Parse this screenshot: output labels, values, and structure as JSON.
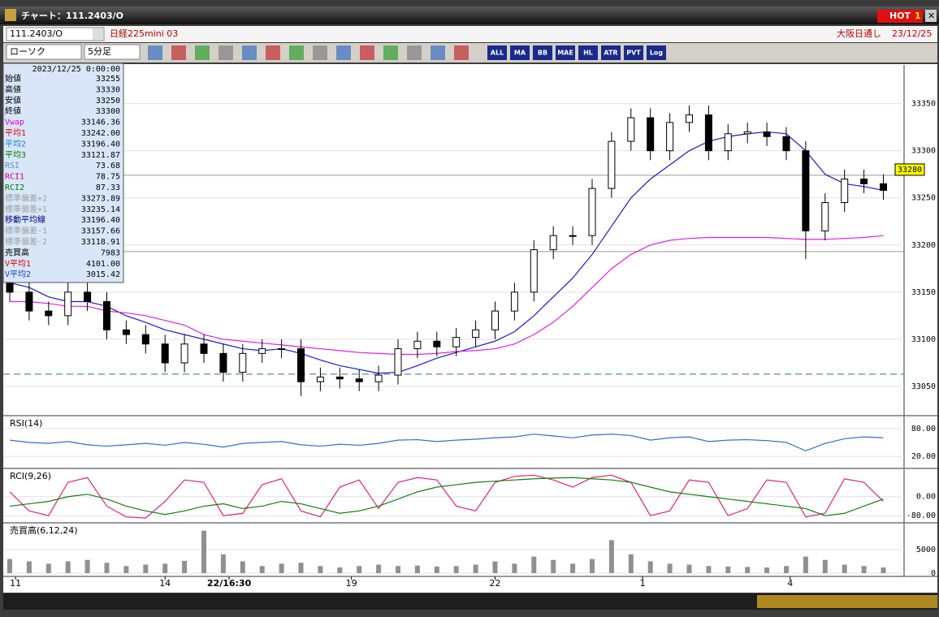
{
  "window": {
    "title": "チャート：111.2403/O",
    "hot": "HOT",
    "hot_num": "1"
  },
  "header": {
    "code": "111.2403/O",
    "name": "日経225mini 03",
    "market": "大阪日通し",
    "date": "23/12/25"
  },
  "toolbar": {
    "chart_type": "ローソク",
    "interval": "5分足",
    "buttons": [
      "ALL",
      "MA",
      "BB",
      "MAE",
      "HL",
      "ATR",
      "PVT",
      "Log"
    ]
  },
  "info": {
    "datetime": "2023/12/25 0:00:00",
    "rows": [
      {
        "label": "始値",
        "value": "33255",
        "color": "#000000"
      },
      {
        "label": "高値",
        "value": "33330",
        "color": "#000000"
      },
      {
        "label": "安値",
        "value": "33250",
        "color": "#000000"
      },
      {
        "label": "終値",
        "value": "33300",
        "color": "#000000"
      },
      {
        "label": "Vwap",
        "value": "33146.36",
        "color": "#e000e0"
      },
      {
        "label": "平均1",
        "value": "33242.00",
        "color": "#e00000"
      },
      {
        "label": "平均2",
        "value": "33196.40",
        "color": "#1080c0"
      },
      {
        "label": "平均3",
        "value": "33121.87",
        "color": "#008000"
      },
      {
        "label": "RSI",
        "value": "73.68",
        "color": "#6090d0"
      },
      {
        "label": "RCI1",
        "value": "78.75",
        "color": "#d00080"
      },
      {
        "label": "RCI2",
        "value": "87.33",
        "color": "#008000"
      },
      {
        "label": "標準偏差+2",
        "value": "33273.89",
        "color": "#a0a0a0"
      },
      {
        "label": "標準偏差+1",
        "value": "33235.14",
        "color": "#a0a0a0"
      },
      {
        "label": "移動平均線",
        "value": "33196.40",
        "color": "#000080"
      },
      {
        "label": "標準偏差-1",
        "value": "33157.66",
        "color": "#a0a0a0"
      },
      {
        "label": "標準偏差-2",
        "value": "33118.91",
        "color": "#a0a0a0"
      },
      {
        "label": "売買高",
        "value": "7983",
        "color": "#000000"
      },
      {
        "label": "V平均1",
        "value": "4101.00",
        "color": "#e00000"
      },
      {
        "label": "V平均2",
        "value": "3015.42",
        "color": "#2040c0"
      }
    ]
  },
  "chart_data": [
    {
      "type": "candlestick",
      "open": [
        33160,
        33150,
        33130,
        33125,
        33150,
        33140,
        33110,
        33105,
        33095,
        33075,
        33095,
        33085,
        33065,
        33085,
        33090,
        33090,
        33055,
        33060,
        33058,
        33055,
        33062,
        33090,
        33098,
        33092,
        33102,
        33110,
        33130,
        33150,
        33195,
        33210,
        33210,
        33260,
        33310,
        33335,
        33300,
        33330,
        33338,
        33300,
        33318,
        33320,
        33315,
        33300,
        33215,
        33245,
        33270,
        33265
      ],
      "high": [
        33170,
        33160,
        33140,
        33160,
        33160,
        33150,
        33120,
        33115,
        33105,
        33105,
        33105,
        33095,
        33095,
        33100,
        33100,
        33100,
        33070,
        33070,
        33068,
        33072,
        33100,
        33108,
        33108,
        33112,
        33120,
        33140,
        33160,
        33205,
        33220,
        33220,
        33270,
        33320,
        33345,
        33345,
        33340,
        33348,
        33348,
        33328,
        33330,
        33330,
        33325,
        33310,
        33255,
        33280,
        33280,
        33275
      ],
      "low": [
        33140,
        33120,
        33115,
        33115,
        33130,
        33100,
        33095,
        33085,
        33065,
        33065,
        33075,
        33055,
        33055,
        33075,
        33080,
        33040,
        33045,
        33048,
        33045,
        33045,
        33052,
        33080,
        33082,
        33082,
        33092,
        33100,
        33120,
        33140,
        33185,
        33200,
        33200,
        33250,
        33300,
        33290,
        33290,
        33320,
        33290,
        33290,
        33308,
        33305,
        33290,
        33185,
        33205,
        33235,
        33255,
        33248
      ],
      "close": [
        33150,
        33130,
        33125,
        33150,
        33140,
        33110,
        33105,
        33095,
        33075,
        33095,
        33085,
        33065,
        33085,
        33090,
        33090,
        33055,
        33060,
        33058,
        33055,
        33062,
        33090,
        33098,
        33092,
        33102,
        33110,
        33130,
        33150,
        33195,
        33210,
        33210,
        33260,
        33310,
        33335,
        33300,
        33330,
        33338,
        33300,
        33318,
        33320,
        33315,
        33300,
        33215,
        33245,
        33270,
        33265,
        33258
      ],
      "overlays": [
        {
          "color": "#1a1ad0",
          "values": [
            33160,
            33155,
            33145,
            33140,
            33140,
            33135,
            33125,
            33118,
            33110,
            33105,
            33100,
            33095,
            33090,
            33088,
            33090,
            33085,
            33078,
            33072,
            33068,
            33064,
            33065,
            33072,
            33080,
            33086,
            33092,
            33098,
            33108,
            33125,
            33145,
            33165,
            33190,
            33220,
            33250,
            33270,
            33285,
            33300,
            33310,
            33315,
            33318,
            33320,
            33318,
            33300,
            33275,
            33265,
            33262,
            33258
          ]
        },
        {
          "color": "#e020e0",
          "values": [
            33140,
            33140,
            33138,
            33135,
            33135,
            33130,
            33128,
            33125,
            33120,
            33115,
            33105,
            33100,
            33098,
            33096,
            33094,
            33092,
            33090,
            33088,
            33086,
            33085,
            33084,
            33084,
            33085,
            33087,
            33088,
            33090,
            33095,
            33105,
            33118,
            33135,
            33155,
            33175,
            33190,
            33200,
            33205,
            33207,
            33208,
            33208,
            33208,
            33208,
            33207,
            33206,
            33206,
            33207,
            33208,
            33210
          ]
        }
      ],
      "ylim": [
        33019,
        33391
      ],
      "yticks": [
        33050,
        33100,
        33150,
        33200,
        33250,
        33300,
        33350
      ],
      "xticks": [
        {
          "value": 0.3,
          "label": "11"
        },
        {
          "value": 8,
          "label": "14"
        },
        {
          "value": 11.3,
          "label": "22/16:30"
        },
        {
          "value": 17.6,
          "label": "19"
        },
        {
          "value": 25,
          "label": "22"
        },
        {
          "value": 32.6,
          "label": "1"
        },
        {
          "value": 40.2,
          "label": "4"
        }
      ],
      "hlines": [
        33274,
        33193
      ],
      "dashed_line": 33063,
      "last_price": {
        "value": 33280,
        "label": "33280"
      }
    },
    {
      "type": "line",
      "title": "RSI(14)",
      "ylim": [
        -6,
        106
      ],
      "yticks": [
        {
          "value": 80,
          "label": "80.00"
        },
        {
          "value": 20,
          "label": "20.00"
        }
      ],
      "series": [
        {
          "color": "#3070d0",
          "values": [
            55,
            50,
            48,
            52,
            45,
            42,
            45,
            48,
            44,
            50,
            46,
            40,
            48,
            50,
            52,
            45,
            42,
            46,
            44,
            48,
            55,
            56,
            52,
            55,
            57,
            60,
            62,
            68,
            64,
            60,
            66,
            68,
            65,
            55,
            60,
            62,
            52,
            55,
            56,
            54,
            50,
            32,
            48,
            58,
            62,
            60
          ]
        }
      ]
    },
    {
      "type": "line",
      "title": "RCI(9,26)",
      "ylim": [
        -110,
        115
      ],
      "yticks": [
        {
          "value": 0,
          "label": "0.00"
        },
        {
          "value": -80,
          "label": "-80.00"
        }
      ],
      "series": [
        {
          "color": "#e0207a",
          "values": [
            20,
            -60,
            -80,
            60,
            80,
            -40,
            -85,
            -90,
            -20,
            70,
            60,
            -80,
            -70,
            50,
            75,
            -60,
            -85,
            40,
            70,
            -50,
            60,
            80,
            70,
            -40,
            -60,
            60,
            85,
            90,
            70,
            40,
            80,
            90,
            60,
            -80,
            -60,
            70,
            60,
            -80,
            -50,
            70,
            60,
            -85,
            -70,
            75,
            60,
            -20
          ]
        },
        {
          "color": "#108010",
          "values": [
            -40,
            -30,
            -20,
            0,
            10,
            -10,
            -40,
            -60,
            -75,
            -60,
            -40,
            -30,
            -50,
            -40,
            -20,
            -30,
            -50,
            -70,
            -60,
            -40,
            -10,
            20,
            40,
            50,
            60,
            65,
            70,
            75,
            78,
            80,
            75,
            70,
            60,
            40,
            20,
            10,
            0,
            -10,
            -20,
            -30,
            -40,
            -50,
            -80,
            -70,
            -40,
            -10
          ]
        }
      ]
    },
    {
      "type": "bar",
      "title": "売買高(6,12,24)",
      "color": "#909090",
      "ylim": [
        -700,
        10500
      ],
      "yticks": [
        5000,
        0
      ],
      "values": [
        3000,
        2500,
        2000,
        2500,
        2800,
        2200,
        1500,
        1800,
        2000,
        2600,
        9000,
        4000,
        2500,
        1500,
        2000,
        2200,
        1500,
        1200,
        1500,
        1800,
        1500,
        1600,
        1400,
        1500,
        1800,
        2500,
        2000,
        3500,
        2800,
        2000,
        3000,
        7000,
        4000,
        2500,
        2000,
        1800,
        1500,
        1400,
        1300,
        1200,
        1500,
        3500,
        2800,
        1800,
        1500,
        1200
      ]
    }
  ]
}
